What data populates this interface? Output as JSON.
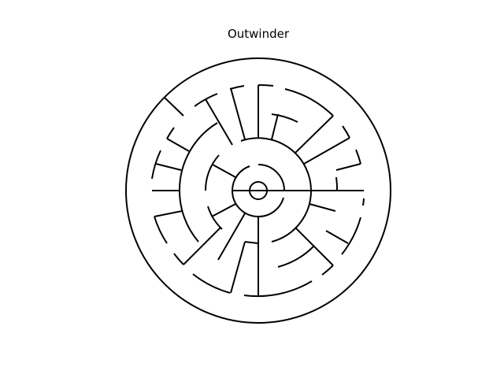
{
  "title": "Outwinder",
  "colors": {
    "background": "#ffffff",
    "wall": "#000000"
  }
}
